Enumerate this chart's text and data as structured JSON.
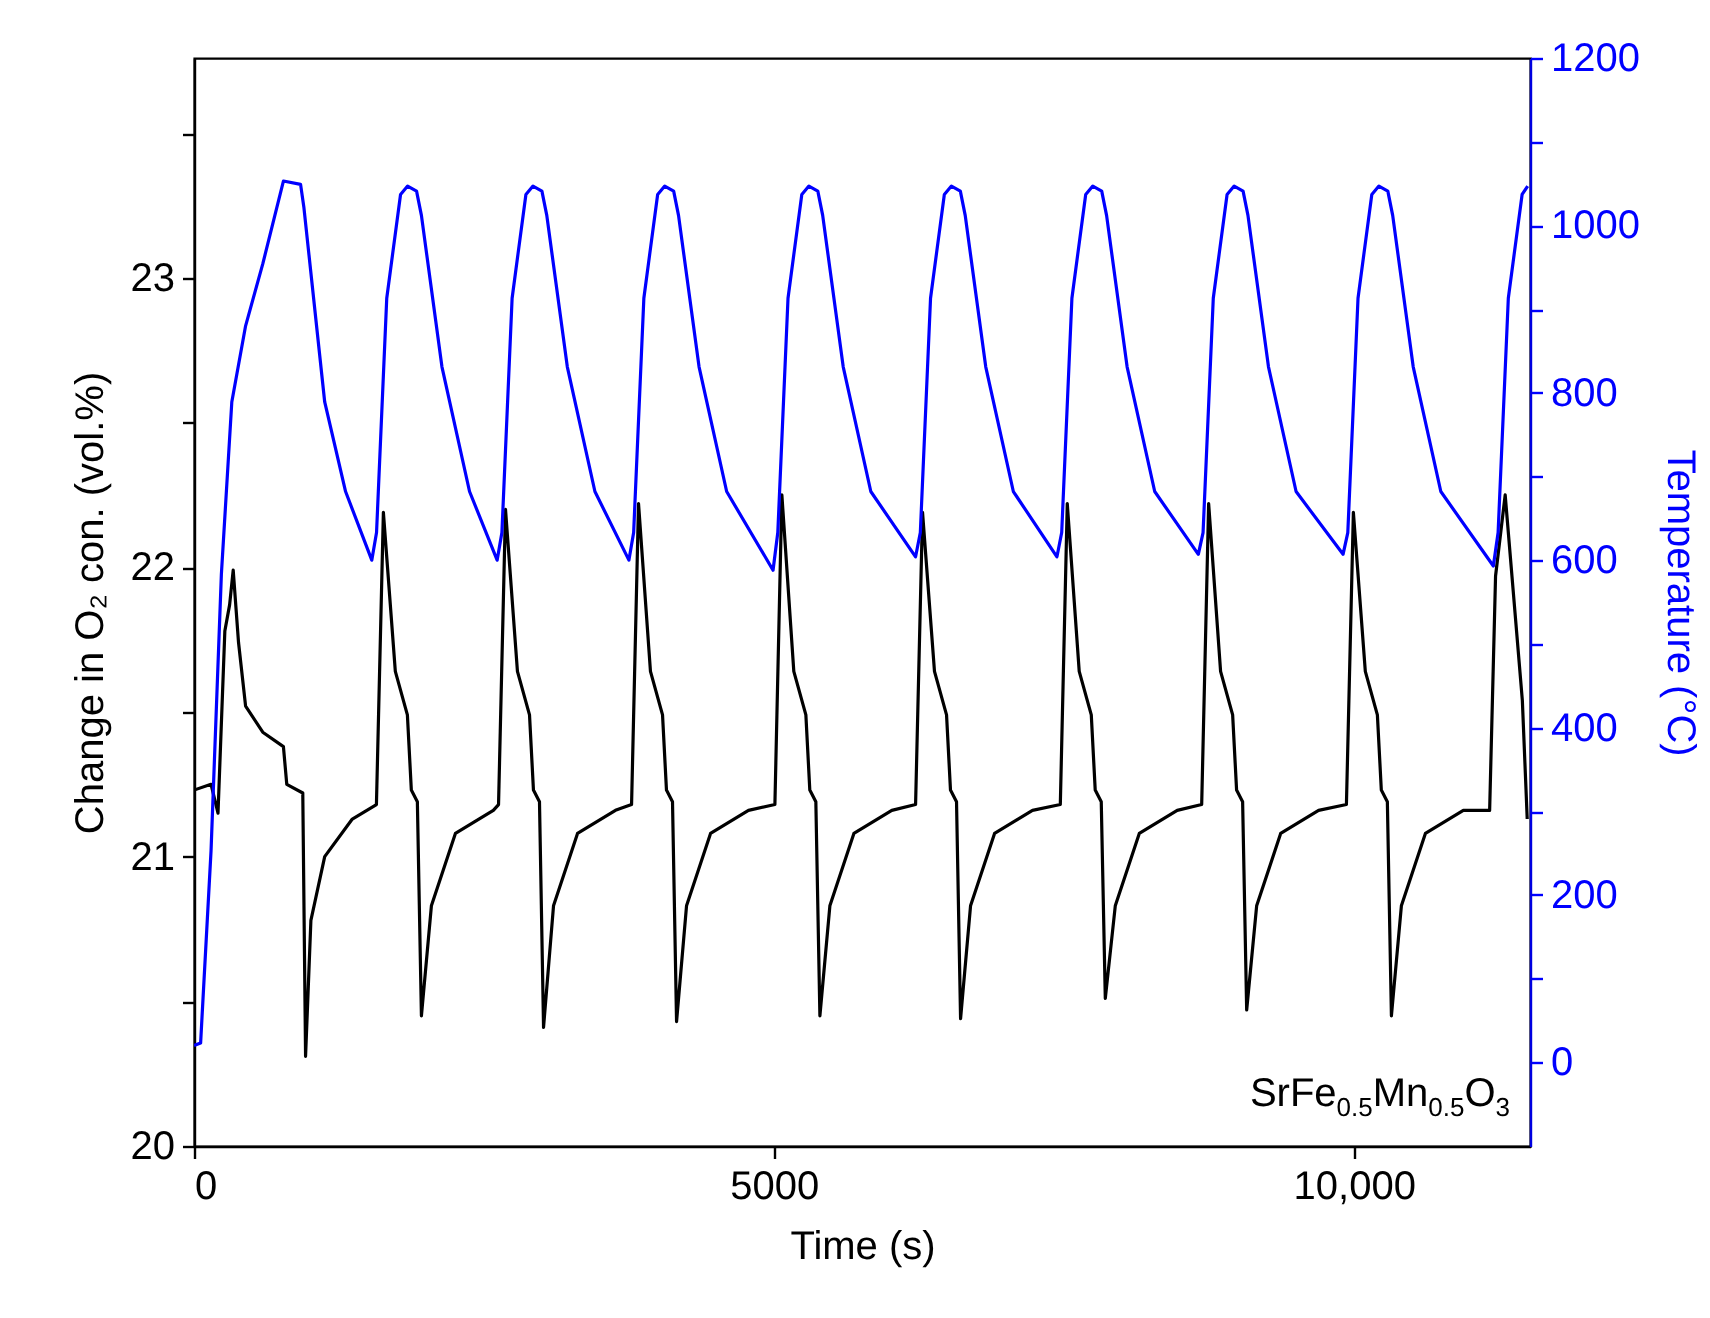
{
  "chart_data": {
    "type": "line",
    "xlabel": "Time (s)",
    "ylabel": "Change in O₂ con. (vol.%)",
    "y2label": "Temperature (°C)",
    "xlim": [
      0,
      11520
    ],
    "xticks": [
      0,
      5000,
      {
        "value": 10000,
        "label": "10,000"
      }
    ],
    "ylim": [
      20,
      23.76
    ],
    "yticks": [
      20,
      {
        "value": 20.5,
        "label": null
      },
      21,
      {
        "value": 21.5,
        "label": null
      },
      22,
      {
        "value": 22.5,
        "label": null
      },
      23,
      {
        "value": 23.5,
        "label": null
      }
    ],
    "y2lim": [
      -100,
      1200
    ],
    "y2ticks": [
      0,
      {
        "value": 100,
        "label": null
      },
      200,
      {
        "value": 300,
        "label": null
      },
      400,
      {
        "value": 500,
        "label": null
      },
      600,
      {
        "value": 700,
        "label": null
      },
      800,
      {
        "value": 900,
        "label": null
      },
      1000,
      {
        "value": 1100,
        "label": null
      },
      1200
    ],
    "annotations": [
      "SrFe$_{0.5}$Mn$_{0.5}$O$_{3}$"
    ],
    "series": [
      {
        "color": "#000000",
        "x": [
          0,
          147,
          207,
          266,
          307,
          338,
          384,
          445,
          593,
          771,
          800,
          938,
          962,
          1008,
          1127,
          1365,
          1573,
          1633,
          1736,
          1840,
          1874,
          1926,
          1961,
          2047,
          2254,
          2581,
          2626,
          2686,
          2789,
          2893,
          2927,
          2979,
          3014,
          3100,
          3307,
          3634,
          3773,
          3833,
          3936,
          4040,
          4074,
          4126,
          4161,
          4247,
          4454,
          4781,
          5009,
          5069,
          5172,
          5276,
          5310,
          5362,
          5397,
          5483,
          5690,
          6017,
          6222,
          6282,
          6385,
          6489,
          6523,
          6575,
          6610,
          6696,
          6903,
          7230,
          7470,
          7530,
          7633,
          7737,
          7771,
          7823,
          7858,
          7944,
          8151,
          8478,
          8689,
          8749,
          8852,
          8956,
          8990,
          9042,
          9077,
          9163,
          9370,
          9697,
          9937,
          9997,
          10100,
          10204,
          10238,
          10290,
          10325,
          10411,
          10618,
          10945,
          11172,
          11223,
          11306,
          11454,
          11496
        ],
        "values": [
          21.23,
          21.25,
          21.15,
          21.78,
          21.87,
          21.99,
          21.74,
          21.52,
          21.43,
          21.38,
          21.25,
          21.22,
          20.31,
          20.78,
          21.0,
          21.13,
          21.18,
          22.19,
          21.64,
          21.49,
          21.23,
          21.19,
          20.45,
          20.83,
          21.08,
          21.16,
          21.18,
          22.2,
          21.64,
          21.49,
          21.23,
          21.19,
          20.41,
          20.83,
          21.08,
          21.16,
          21.18,
          22.22,
          21.64,
          21.49,
          21.23,
          21.19,
          20.43,
          20.83,
          21.08,
          21.16,
          21.18,
          22.25,
          21.64,
          21.49,
          21.23,
          21.19,
          20.45,
          20.83,
          21.08,
          21.16,
          21.18,
          22.19,
          21.64,
          21.49,
          21.23,
          21.19,
          20.44,
          20.83,
          21.08,
          21.16,
          21.18,
          22.22,
          21.64,
          21.49,
          21.23,
          21.19,
          20.51,
          20.83,
          21.08,
          21.16,
          21.18,
          22.22,
          21.64,
          21.49,
          21.23,
          21.19,
          20.47,
          20.83,
          21.08,
          21.16,
          21.18,
          22.19,
          21.64,
          21.49,
          21.23,
          21.19,
          20.45,
          20.83,
          21.08,
          21.16,
          21.16,
          21.97,
          22.25,
          21.54,
          21.13
        ]
      },
      {
        "color": "#0000ff",
        "axis": "y2",
        "x": [
          0,
          57,
          147,
          236,
          326,
          445,
          593,
          771,
          919,
          948,
          1127,
          1307,
          1533,
          1574,
          1662,
          1781,
          1842,
          1919,
          1961,
          2138,
          2376,
          2614,
          2655,
          2743,
          2862,
          2923,
          3000,
          3042,
          3219,
          3457,
          3750,
          3791,
          3879,
          3998,
          4059,
          4136,
          4178,
          4355,
          4593,
          4993,
          5034,
          5122,
          5241,
          5302,
          5379,
          5421,
          5598,
          5836,
          6222,
          6263,
          6351,
          6470,
          6531,
          6608,
          6650,
          6827,
          7065,
          7441,
          7482,
          7570,
          7689,
          7750,
          7827,
          7869,
          8046,
          8284,
          8660,
          8701,
          8789,
          8908,
          8969,
          9046,
          9088,
          9265,
          9503,
          9908,
          9949,
          10037,
          10156,
          10217,
          10294,
          10336,
          10513,
          10751,
          11204,
          11245,
          11333,
          11452,
          11500
        ],
        "values": [
          20,
          23,
          253,
          583,
          789,
          880,
          954,
          1053,
          1049,
          1021,
          789,
          682,
          600,
          633,
          913,
          1037,
          1047,
          1041,
          1012,
          831,
          682,
          600,
          633,
          913,
          1037,
          1047,
          1041,
          1012,
          831,
          682,
          600,
          633,
          913,
          1037,
          1047,
          1041,
          1012,
          831,
          682,
          588,
          633,
          913,
          1037,
          1047,
          1041,
          1012,
          831,
          682,
          604,
          633,
          913,
          1037,
          1047,
          1041,
          1012,
          831,
          682,
          604,
          633,
          913,
          1037,
          1047,
          1041,
          1012,
          831,
          682,
          607,
          633,
          913,
          1037,
          1047,
          1041,
          1012,
          831,
          682,
          607,
          633,
          913,
          1037,
          1047,
          1041,
          1012,
          831,
          682,
          593,
          633,
          913,
          1037,
          1047
        ]
      }
    ]
  }
}
